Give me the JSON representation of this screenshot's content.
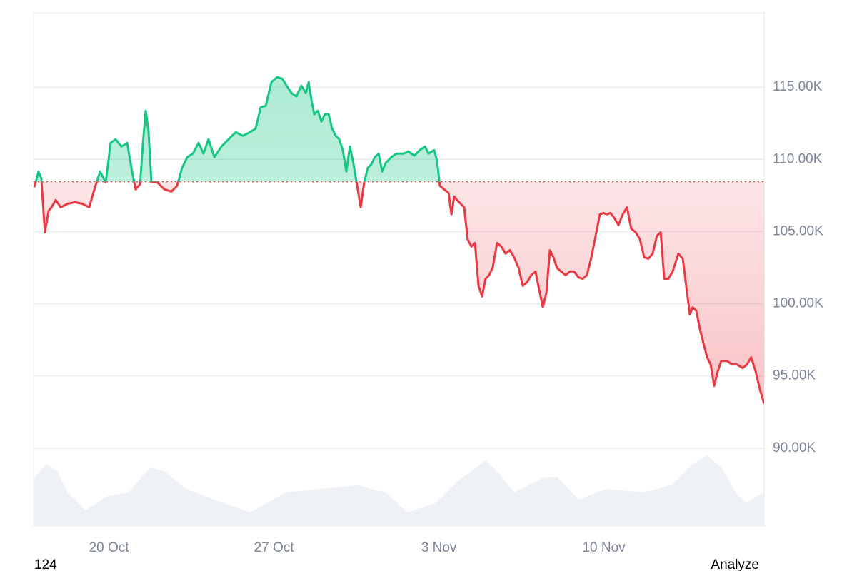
{
  "chart_data": {
    "type": "baseline-line",
    "x": [
      16.83,
      17.01,
      17.13,
      17.28,
      17.44,
      17.56,
      17.74,
      17.95,
      18.25,
      18.56,
      18.86,
      19.16,
      19.38,
      19.62,
      19.86,
      20.07,
      20.28,
      20.53,
      20.77,
      20.98,
      21.13,
      21.32,
      21.44,
      21.56,
      21.68,
      21.8,
      22.04,
      22.35,
      22.65,
      22.89,
      23.1,
      23.32,
      23.56,
      23.8,
      24.01,
      24.22,
      24.47,
      24.77,
      25.07,
      25.38,
      25.68,
      25.98,
      26.22,
      26.44,
      26.65,
      26.89,
      27.13,
      27.35,
      27.5,
      27.74,
      27.95,
      28.16,
      28.35,
      28.47,
      28.59,
      28.71,
      28.86,
      29.01,
      29.16,
      29.32,
      29.47,
      29.62,
      29.77,
      29.92,
      30.07,
      30.22,
      30.38,
      30.53,
      30.68,
      30.83,
      30.98,
      31.13,
      31.28,
      31.44,
      31.59,
      31.74,
      31.98,
      32.19,
      32.5,
      32.71,
      32.95,
      33.19,
      33.41,
      33.56,
      33.8,
      33.92,
      34.04,
      34.22,
      34.41,
      34.53,
      34.65,
      34.77,
      34.92,
      35.07,
      35.22,
      35.38,
      35.53,
      35.68,
      35.83,
      35.98,
      36.13,
      36.28,
      36.47,
      36.65,
      36.83,
      37.01,
      37.19,
      37.38,
      37.56,
      37.74,
      37.92,
      38.1,
      38.25,
      38.41,
      38.56,
      38.71,
      38.86,
      39.01,
      39.19,
      39.38,
      39.56,
      39.74,
      39.92,
      40.1,
      40.28,
      40.47,
      40.65,
      40.83,
      40.98,
      41.13,
      41.28,
      41.44,
      41.62,
      41.8,
      41.98,
      42.16,
      42.35,
      42.53,
      42.71,
      42.89,
      43.07,
      43.25,
      43.41,
      43.56,
      43.74,
      43.92,
      44.16,
      44.35,
      44.53,
      44.65,
      44.77,
      44.92,
      45.07,
      45.22,
      45.38,
      45.53,
      45.68,
      45.83,
      45.98,
      46.22,
      46.44,
      46.65,
      46.89,
      47.07,
      47.25,
      47.44,
      47.62,
      47.8
    ],
    "values": [
      108070,
      109160,
      108660,
      104950,
      106440,
      106680,
      107180,
      106680,
      106930,
      107030,
      106930,
      106680,
      107920,
      109160,
      108420,
      111140,
      111390,
      110890,
      111140,
      109160,
      107920,
      108270,
      111140,
      113370,
      111880,
      108420,
      108420,
      107920,
      107770,
      108170,
      109410,
      110150,
      110400,
      111140,
      110400,
      111390,
      110150,
      110890,
      111390,
      111880,
      111630,
      111880,
      112130,
      113610,
      113710,
      115350,
      115690,
      115590,
      115200,
      114600,
      114360,
      115100,
      114600,
      115350,
      114110,
      113120,
      113370,
      112620,
      113120,
      113120,
      112130,
      111630,
      111390,
      110640,
      109160,
      110890,
      109650,
      108170,
      106680,
      108420,
      109410,
      109650,
      110150,
      110400,
      109160,
      109750,
      110150,
      110400,
      110400,
      110550,
      110250,
      110640,
      110890,
      110400,
      110640,
      109900,
      108170,
      107920,
      107670,
      106190,
      107430,
      107180,
      106930,
      106680,
      104460,
      103960,
      104210,
      101240,
      100500,
      101730,
      101980,
      102480,
      104210,
      103960,
      103470,
      103710,
      103220,
      102480,
      101240,
      101490,
      101980,
      102230,
      100990,
      99750,
      100740,
      103710,
      103220,
      102480,
      102230,
      101980,
      102230,
      102230,
      101830,
      101730,
      101980,
      103220,
      104700,
      106190,
      106290,
      106190,
      106290,
      105940,
      105450,
      106190,
      106680,
      105200,
      104950,
      104460,
      103220,
      103120,
      103470,
      104700,
      104950,
      101730,
      101730,
      102230,
      103470,
      103120,
      100740,
      99260,
      99750,
      99510,
      98270,
      97280,
      96290,
      95790,
      94310,
      95300,
      96040,
      96040,
      95790,
      95790,
      95550,
      95790,
      96290,
      95300,
      94060,
      93070
    ],
    "baseline": 108450,
    "up_color": "#16c784",
    "down_color": "#ea3943",
    "xlim": [
      16.8,
      47.8
    ],
    "xticks": [
      {
        "value": 20,
        "label": "20 Oct"
      },
      {
        "value": 27,
        "label": "27 Oct"
      },
      {
        "value": 34,
        "label": "3 Nov"
      },
      {
        "value": 41,
        "label": "10 Nov"
      }
    ],
    "ylim": [
      84600,
      120150
    ],
    "yticks": [
      {
        "value": 90000,
        "label": "90.00K"
      },
      {
        "value": 95000,
        "label": "95.00K"
      },
      {
        "value": 100000,
        "label": "100.00K"
      },
      {
        "value": 105000,
        "label": "105.00K"
      },
      {
        "value": 110000,
        "label": "110.00K"
      },
      {
        "value": 115000,
        "label": "115.00K"
      }
    ],
    "grid": true,
    "volume": {
      "color": "#eef1f5",
      "x": [
        16.8,
        17.35,
        17.8,
        18.25,
        19.01,
        19.92,
        20.83,
        21.74,
        22.35,
        23.25,
        24.47,
        25.98,
        27.5,
        29.01,
        30.53,
        31.74,
        32.65,
        33.86,
        34.77,
        35.98,
        36.59,
        37.19,
        38.41,
        39.01,
        39.92,
        41.13,
        42.65,
        43.86,
        44.77,
        45.38,
        45.98,
        46.59,
        47.05,
        47.5,
        47.8
      ],
      "values": [
        67,
        87,
        77,
        47,
        22,
        42,
        47,
        82,
        77,
        52,
        37,
        19,
        47,
        52,
        57,
        47,
        19,
        32,
        62,
        92,
        72,
        47,
        67,
        69,
        37,
        52,
        47,
        57,
        87,
        99,
        82,
        47,
        32,
        42,
        47
      ],
      "vlim": [
        0,
        100
      ]
    },
    "footer_left": "124",
    "footer_right": "Analyze"
  }
}
